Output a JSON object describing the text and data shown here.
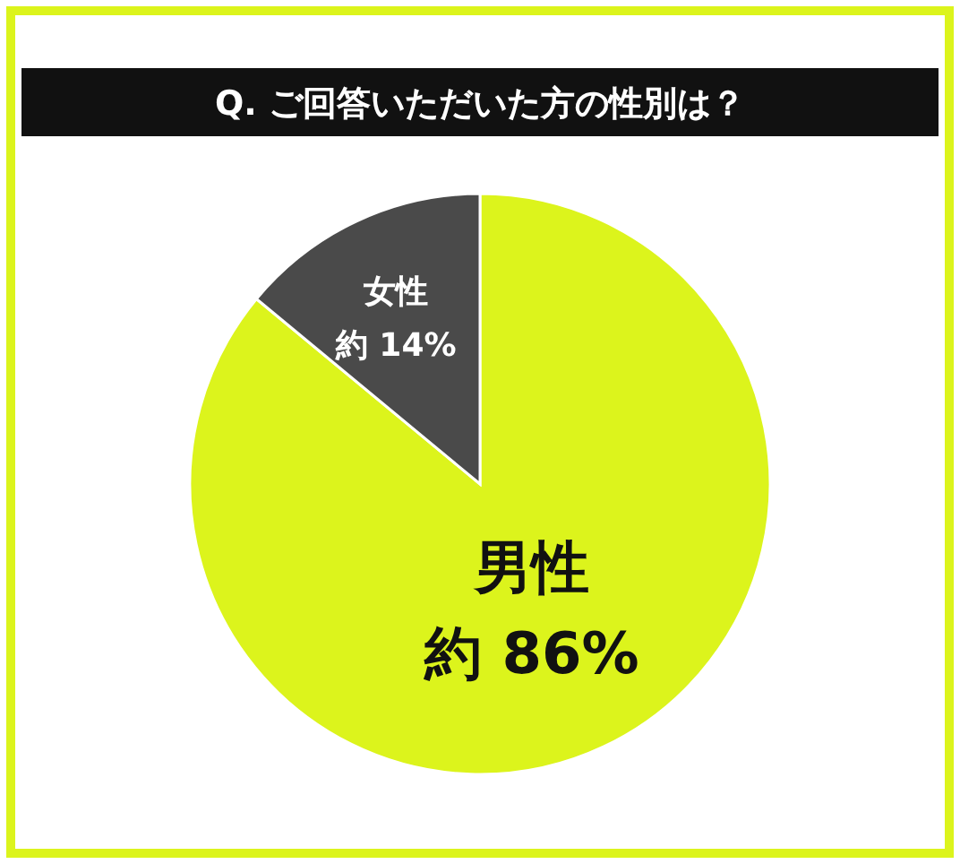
{
  "chart_data": {
    "type": "pie",
    "title": "Q. ご回答いただいた方の性別は？",
    "categories": [
      "男性",
      "女性"
    ],
    "values": [
      86,
      14
    ],
    "colors": [
      "#dcf41c",
      "#4a4a4a"
    ],
    "value_labels": [
      "約 86%",
      "約 14%"
    ]
  }
}
